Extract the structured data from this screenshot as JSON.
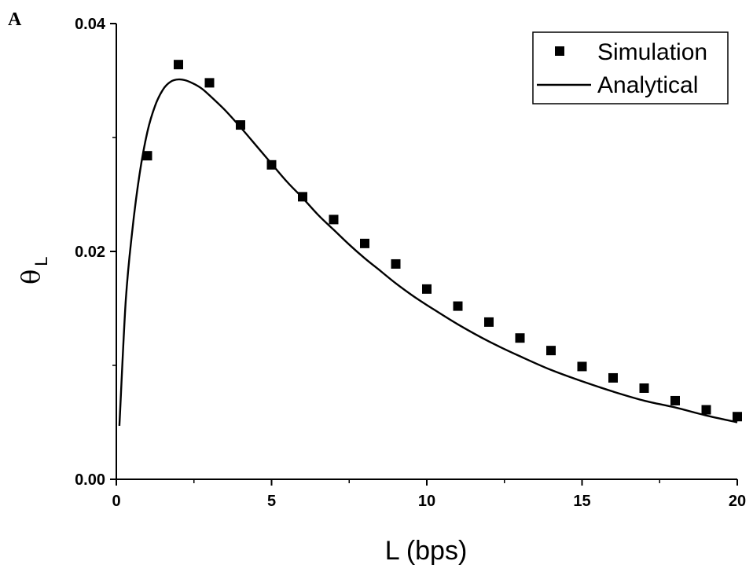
{
  "panel_label": "A",
  "chart_data": {
    "type": "scatter",
    "xlabel": "L (bps)",
    "ylabel": {
      "main": "θ",
      "sub": "L"
    },
    "xlim": [
      0,
      20
    ],
    "ylim": [
      0,
      0.04
    ],
    "x_ticks": [
      0,
      5,
      10,
      15,
      20
    ],
    "x_tick_labels": [
      "0",
      "5",
      "10",
      "15",
      "20"
    ],
    "y_ticks": [
      0,
      0.02,
      0.04
    ],
    "y_tick_labels": [
      "0.00",
      "0.02",
      "0.04"
    ],
    "grid": false,
    "legend_position": "top-right",
    "series": [
      {
        "name": "Simulation",
        "kind": "scatter",
        "marker": "square",
        "color": "#000000",
        "x": [
          1,
          2,
          3,
          4,
          5,
          6,
          7,
          8,
          9,
          10,
          11,
          12,
          13,
          14,
          15,
          16,
          17,
          18,
          19,
          20
        ],
        "y": [
          0.0284,
          0.0364,
          0.0348,
          0.0311,
          0.0276,
          0.0248,
          0.0228,
          0.0207,
          0.0189,
          0.0167,
          0.0152,
          0.0138,
          0.0124,
          0.0113,
          0.0099,
          0.0089,
          0.008,
          0.0069,
          0.0061,
          0.0055
        ]
      },
      {
        "name": "Analytical",
        "kind": "line",
        "color": "#000000",
        "x": [
          0.1,
          0.3,
          0.5,
          0.75,
          1,
          1.25,
          1.5,
          1.75,
          2,
          2.25,
          2.5,
          2.75,
          3,
          3.5,
          4,
          4.5,
          5,
          5.5,
          6,
          6.5,
          7,
          7.5,
          8,
          8.5,
          9,
          9.5,
          10,
          11,
          12,
          13,
          14,
          15,
          16,
          17,
          18,
          19,
          20
        ],
        "y": [
          0.0047,
          0.0155,
          0.0215,
          0.0268,
          0.0305,
          0.0328,
          0.0342,
          0.0349,
          0.0351,
          0.035,
          0.0347,
          0.0343,
          0.0337,
          0.0324,
          0.0309,
          0.0293,
          0.0277,
          0.0261,
          0.0247,
          0.0232,
          0.0219,
          0.0206,
          0.0194,
          0.0183,
          0.0172,
          0.0162,
          0.0153,
          0.0136,
          0.0121,
          0.0108,
          0.0096,
          0.0086,
          0.0077,
          0.0069,
          0.0063,
          0.0056,
          0.005
        ]
      }
    ]
  }
}
